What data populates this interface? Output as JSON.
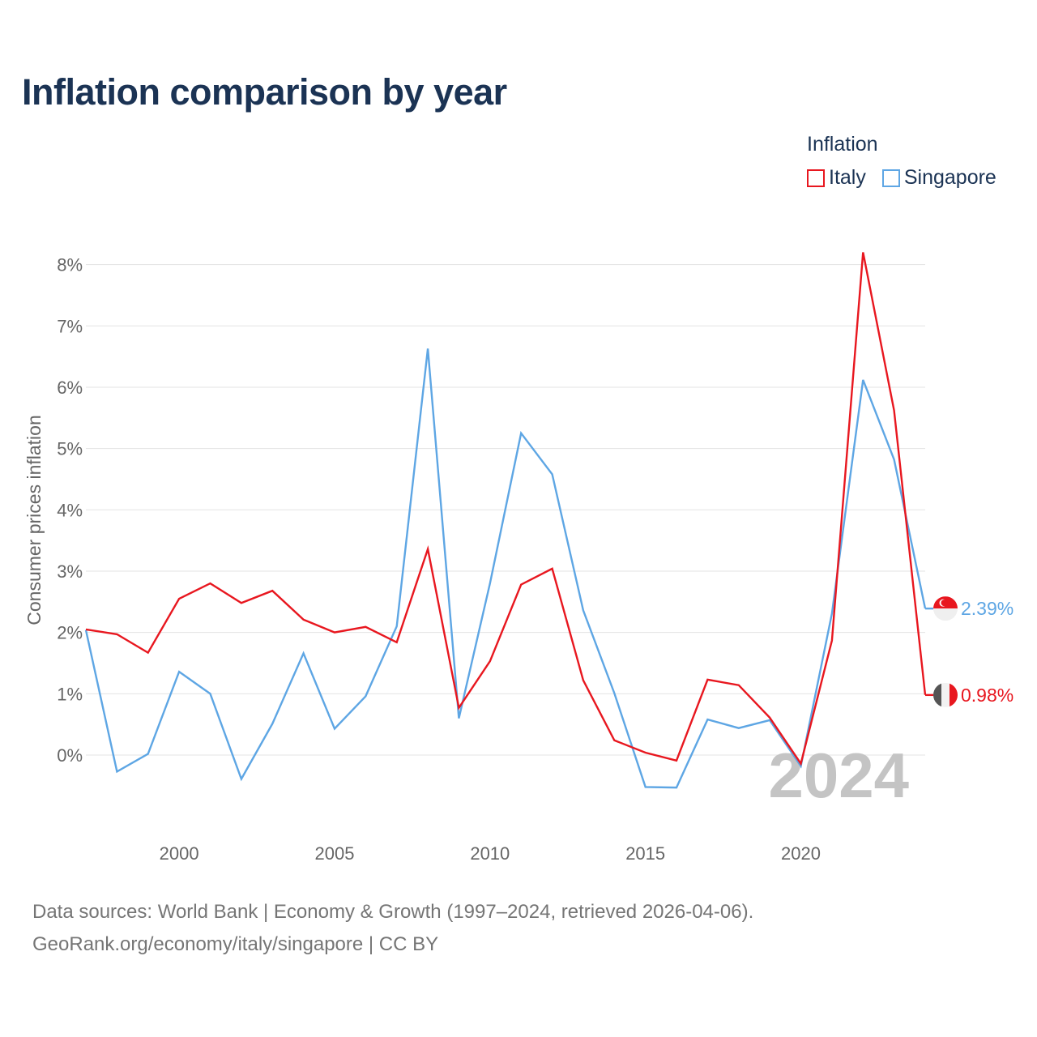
{
  "title": "Inflation comparison by year",
  "legend": {
    "title": "Inflation",
    "items": [
      {
        "label": "Italy",
        "color": "#e8171f"
      },
      {
        "label": "Singapore",
        "color": "#5ea6e4"
      }
    ]
  },
  "chart_data": {
    "type": "line",
    "title": "Inflation comparison by year",
    "xlabel": "",
    "ylabel": "Consumer prices inflation",
    "xlim": [
      1997,
      2024
    ],
    "ylim": [
      -1,
      8.6
    ],
    "x_ticks": [
      2000,
      2005,
      2010,
      2015,
      2020
    ],
    "y_ticks": [
      0,
      1,
      2,
      3,
      4,
      5,
      6,
      7,
      8
    ],
    "y_tick_labels": [
      "0%",
      "1%",
      "2%",
      "3%",
      "4%",
      "5%",
      "6%",
      "7%",
      "8%"
    ],
    "grid": true,
    "watermark": "2024",
    "x": [
      1997,
      1998,
      1999,
      2000,
      2001,
      2002,
      2003,
      2004,
      2005,
      2006,
      2007,
      2008,
      2009,
      2010,
      2011,
      2012,
      2013,
      2014,
      2015,
      2016,
      2017,
      2018,
      2019,
      2020,
      2021,
      2022,
      2023,
      2024
    ],
    "series": [
      {
        "name": "Italy",
        "color": "#e8171f",
        "values": [
          2.05,
          1.97,
          1.67,
          2.55,
          2.8,
          2.48,
          2.68,
          2.21,
          2.0,
          2.09,
          1.84,
          3.36,
          0.77,
          1.53,
          2.78,
          3.04,
          1.22,
          0.24,
          0.04,
          -0.09,
          1.23,
          1.14,
          0.61,
          -0.14,
          1.87,
          8.2,
          5.62,
          0.98
        ],
        "end_label": "0.98%"
      },
      {
        "name": "Singapore",
        "color": "#5ea6e4",
        "values": [
          2.04,
          -0.27,
          0.02,
          1.36,
          1.0,
          -0.39,
          0.51,
          1.66,
          0.43,
          0.96,
          2.1,
          6.63,
          0.6,
          2.8,
          5.25,
          4.58,
          2.36,
          1.01,
          -0.52,
          -0.53,
          0.58,
          0.44,
          0.57,
          -0.18,
          2.31,
          6.12,
          4.82,
          2.39
        ],
        "end_label": "2.39%"
      }
    ]
  },
  "source": {
    "line1": "Data sources: World Bank | Economy & Growth (1997–2024, retrieved 2026-04-06).",
    "line2": "GeoRank.org/economy/italy/singapore | CC BY"
  }
}
